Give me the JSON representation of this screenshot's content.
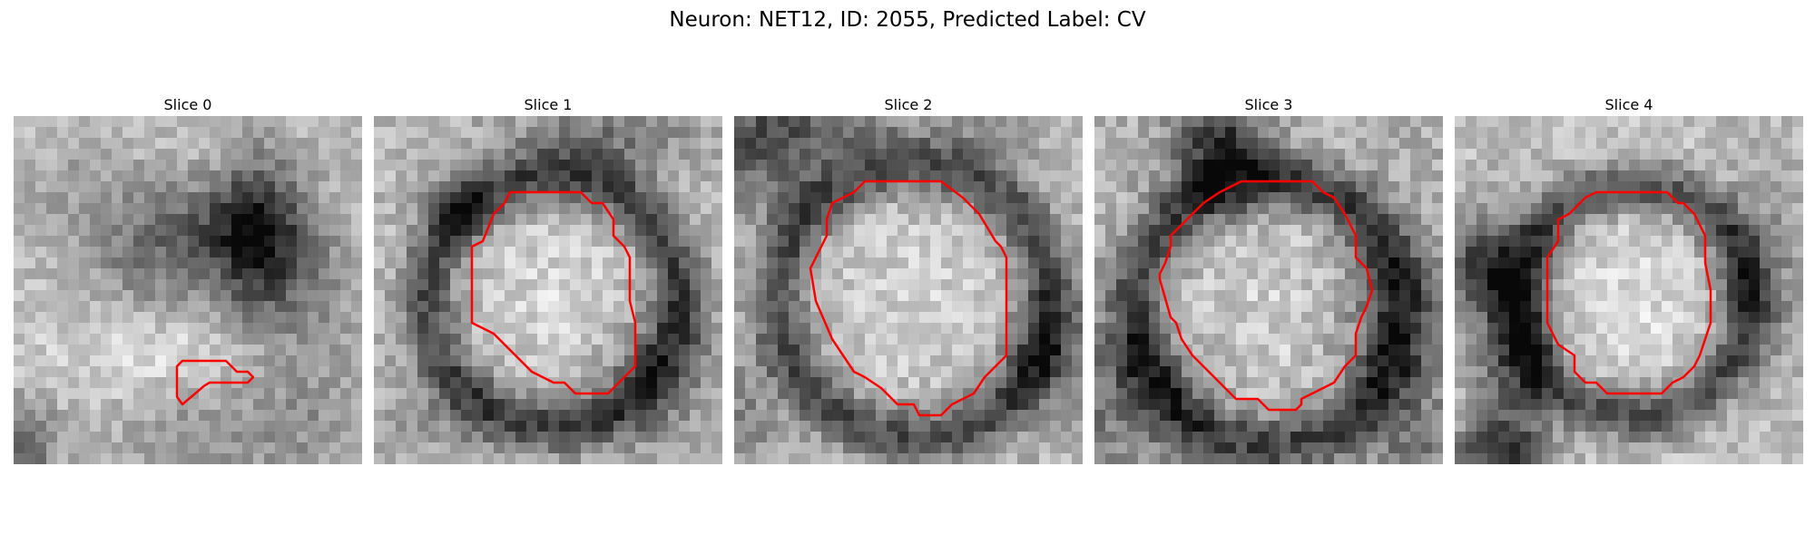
{
  "figure": {
    "title": "Neuron: NET12, ID: 2055, Predicted Label: CV"
  },
  "slices": [
    {
      "title": "Slice 0"
    },
    {
      "title": "Slice 1"
    },
    {
      "title": "Slice 2"
    },
    {
      "title": "Slice 3"
    },
    {
      "title": "Slice 4"
    }
  ],
  "colors": {
    "contour": "#ff0000",
    "background": "#ffffff"
  }
}
